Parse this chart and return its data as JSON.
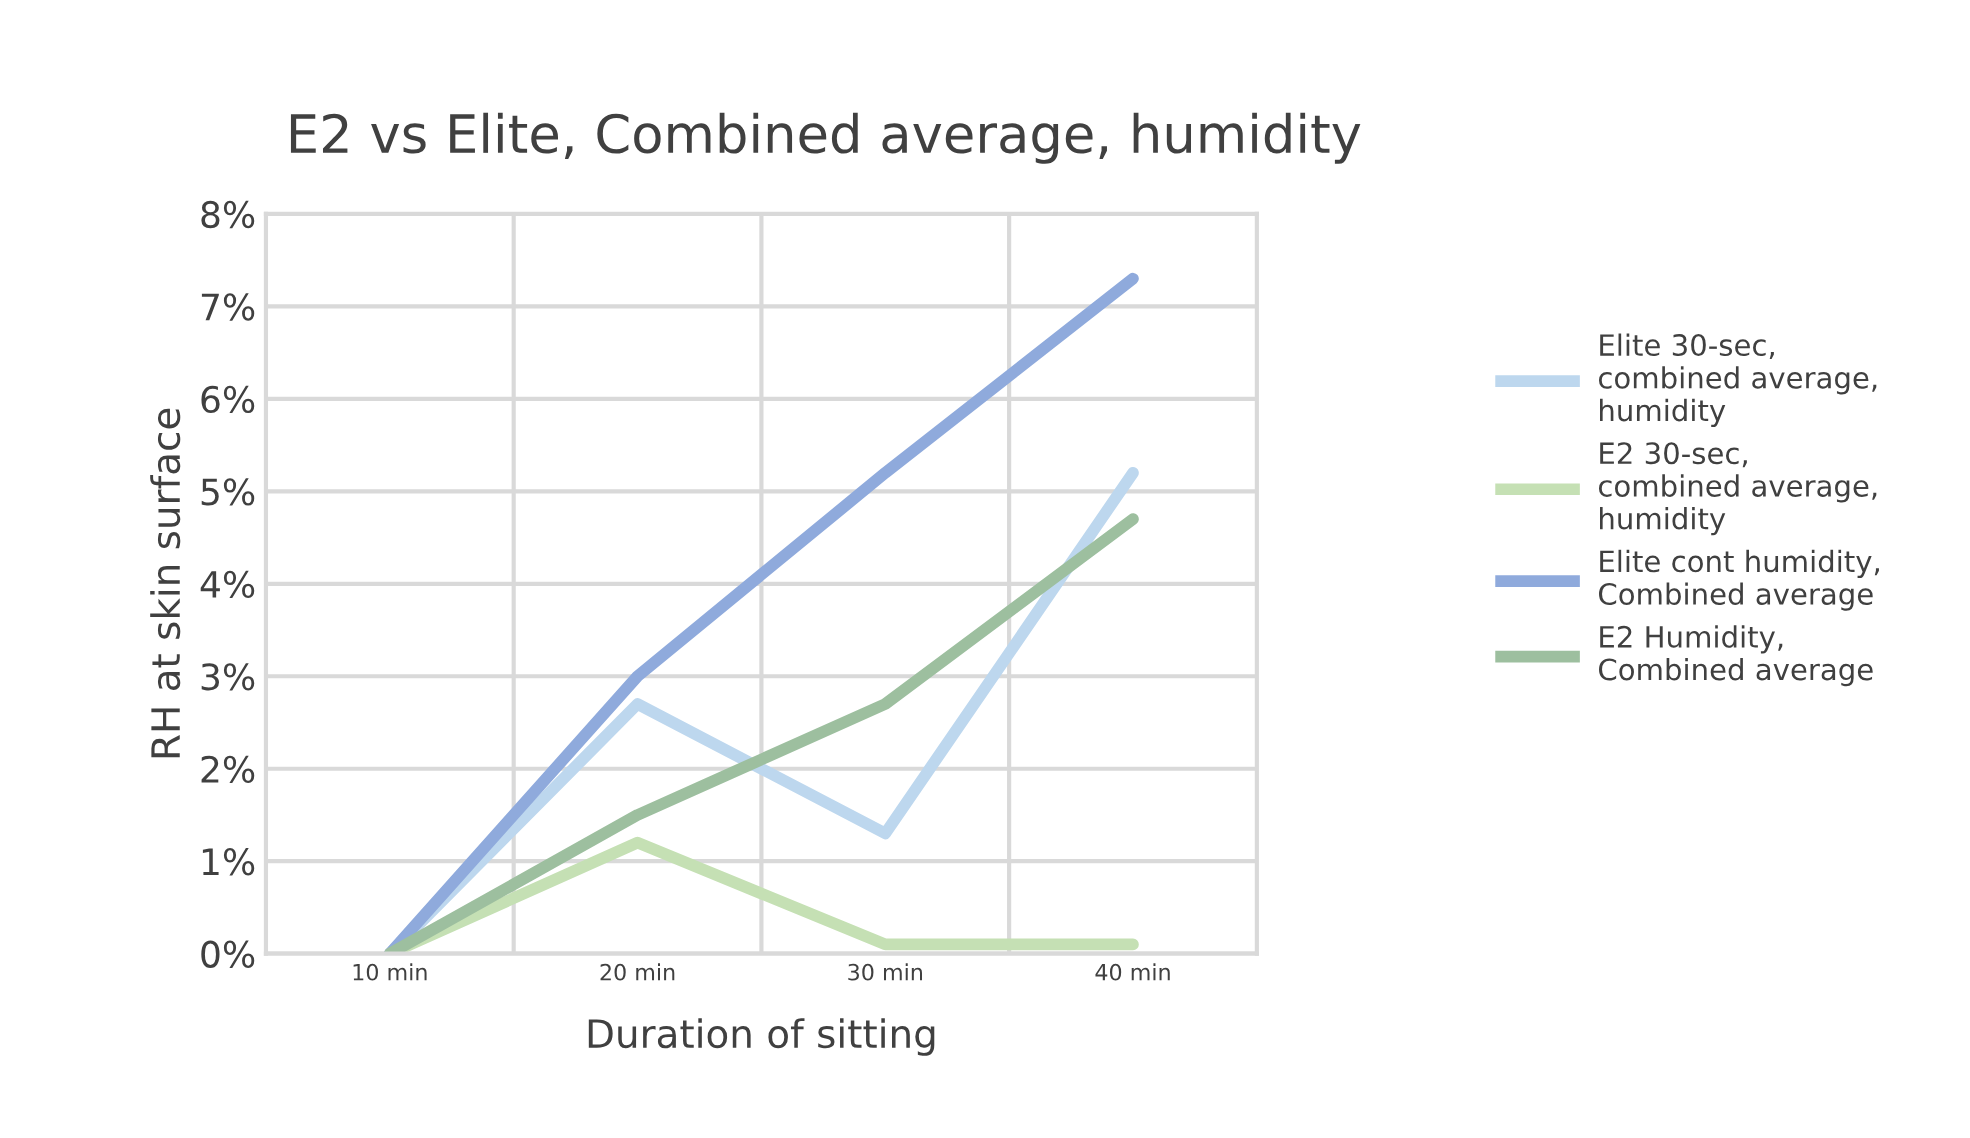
{
  "chart_data": {
    "type": "line",
    "title": "E2 vs Elite, Combined average, humidity",
    "xlabel": "Duration of sitting",
    "ylabel": "RH at skin surface",
    "categories": [
      "10 min",
      "20 min",
      "30 min",
      "40 min"
    ],
    "series": [
      {
        "name": "Elite 30-sec, combined average, humidity",
        "color": "#bdd7ee",
        "values": [
          0,
          2.7,
          1.3,
          5.2
        ]
      },
      {
        "name": "E2 30-sec, combined average, humidity",
        "color": "#c5e0b4",
        "values": [
          0,
          1.2,
          0.1,
          0.1
        ]
      },
      {
        "name": "Elite cont humidity, Combined average",
        "color": "#8faadc",
        "values": [
          0,
          3.0,
          5.2,
          7.3
        ]
      },
      {
        "name": "E2 Humidity, Combined average",
        "color": "#9dbf9f",
        "values": [
          0,
          1.5,
          2.7,
          4.7
        ]
      }
    ],
    "ylim": [
      0,
      8
    ],
    "yticks": [
      {
        "value": 0,
        "label": "0%"
      },
      {
        "value": 1,
        "label": "1%"
      },
      {
        "value": 2,
        "label": "2%"
      },
      {
        "value": 3,
        "label": "3%"
      },
      {
        "value": 4,
        "label": "4%"
      },
      {
        "value": 5,
        "label": "5%"
      },
      {
        "value": 6,
        "label": "6%"
      },
      {
        "value": 7,
        "label": "7%"
      },
      {
        "value": 8,
        "label": "8%"
      }
    ],
    "grid": true,
    "legend": "right",
    "marker": "none",
    "line_style": "solid"
  }
}
